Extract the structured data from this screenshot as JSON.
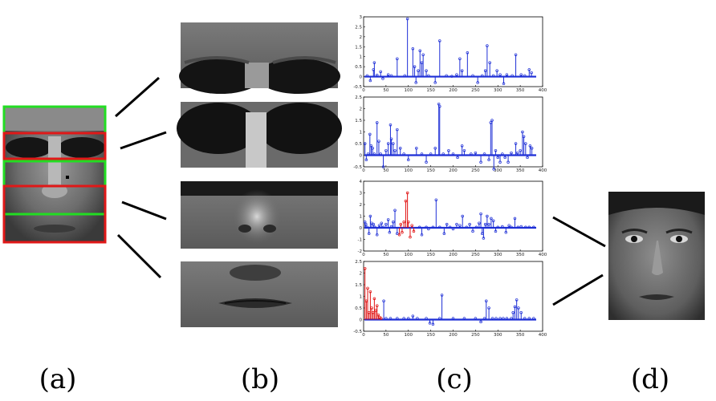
{
  "panel_labels": [
    "(a)",
    "(b)",
    "(c)",
    "(d)"
  ],
  "colors": {
    "stem_blue": "#1e2fd6",
    "stem_red": "#e01010",
    "box_green": "#22dd22",
    "box_red": "#e01818",
    "axis": "#000000"
  },
  "chart_data": [
    {
      "type": "stem",
      "xlim": [
        0,
        400
      ],
      "ylim": [
        -0.5,
        3
      ],
      "x_ticks": [
        0,
        50,
        100,
        150,
        200,
        250,
        300,
        350,
        400
      ],
      "y_ticks": [
        -0.5,
        0,
        0.5,
        1,
        1.5,
        2,
        2.5,
        3
      ],
      "x_tick_labels": [
        "0",
        "50",
        "100",
        "150",
        "200",
        "250",
        "300",
        "350",
        "400"
      ],
      "y_tick_labels": [
        "-0.5",
        "0",
        "0.5",
        "1",
        "1.5",
        "2",
        "2.5",
        "3"
      ],
      "highlight": [],
      "points": [
        [
          8,
          0.05
        ],
        [
          15,
          -0.2
        ],
        [
          22,
          0.35
        ],
        [
          24,
          0.7
        ],
        [
          30,
          0.08
        ],
        [
          38,
          0.25
        ],
        [
          43,
          -0.1
        ],
        [
          55,
          0.1
        ],
        [
          62,
          0.05
        ],
        [
          75,
          0.9
        ],
        [
          92,
          0.05
        ],
        [
          98,
          2.9
        ],
        [
          110,
          1.4
        ],
        [
          114,
          0.5
        ],
        [
          117,
          -0.3
        ],
        [
          122,
          0.3
        ],
        [
          126,
          1.3
        ],
        [
          130,
          0.7
        ],
        [
          133,
          1.1
        ],
        [
          140,
          0.3
        ],
        [
          145,
          0.05
        ],
        [
          160,
          -0.3
        ],
        [
          170,
          1.8
        ],
        [
          185,
          0.05
        ],
        [
          197,
          0.02
        ],
        [
          208,
          0.1
        ],
        [
          215,
          0.9
        ],
        [
          220,
          0.3
        ],
        [
          232,
          1.2
        ],
        [
          244,
          0.05
        ],
        [
          255,
          -0.3
        ],
        [
          265,
          0.05
        ],
        [
          272,
          0.3
        ],
        [
          276,
          1.55
        ],
        [
          282,
          0.7
        ],
        [
          290,
          0.05
        ],
        [
          298,
          0.3
        ],
        [
          305,
          0.1
        ],
        [
          313,
          -0.35
        ],
        [
          320,
          0.1
        ],
        [
          332,
          0.05
        ],
        [
          340,
          1.1
        ],
        [
          352,
          0.1
        ],
        [
          360,
          0.05
        ],
        [
          370,
          0.35
        ],
        [
          375,
          0.2
        ]
      ]
    },
    {
      "type": "stem",
      "xlim": [
        0,
        400
      ],
      "ylim": [
        -0.5,
        2.5
      ],
      "x_ticks": [
        0,
        50,
        100,
        150,
        200,
        250,
        300,
        350,
        400
      ],
      "y_ticks": [
        -0.5,
        0,
        0.5,
        1,
        1.5,
        2,
        2.5
      ],
      "x_tick_labels": [
        "0",
        "50",
        "100",
        "150",
        "200",
        "250",
        "300",
        "350",
        "400"
      ],
      "y_tick_labels": [
        "-0.5",
        "0",
        "0.5",
        "1",
        "1.5",
        "2",
        "2.5"
      ],
      "highlight": [],
      "points": [
        [
          3,
          0.5
        ],
        [
          6,
          -0.2
        ],
        [
          10,
          0.05
        ],
        [
          14,
          0.9
        ],
        [
          17,
          0.4
        ],
        [
          20,
          0.3
        ],
        [
          24,
          0.05
        ],
        [
          30,
          1.4
        ],
        [
          34,
          0.6
        ],
        [
          38,
          0.05
        ],
        [
          44,
          -0.5
        ],
        [
          50,
          0.2
        ],
        [
          55,
          0.5
        ],
        [
          60,
          1.3
        ],
        [
          62,
          0.7
        ],
        [
          66,
          0.5
        ],
        [
          70,
          0.2
        ],
        [
          75,
          1.1
        ],
        [
          82,
          0.3
        ],
        [
          90,
          0.05
        ],
        [
          100,
          -0.2
        ],
        [
          118,
          0.3
        ],
        [
          130,
          0.05
        ],
        [
          140,
          -0.3
        ],
        [
          150,
          0.05
        ],
        [
          160,
          0.3
        ],
        [
          168,
          2.2
        ],
        [
          170,
          2.1
        ],
        [
          178,
          0.05
        ],
        [
          190,
          0.2
        ],
        [
          200,
          0.05
        ],
        [
          210,
          -0.1
        ],
        [
          220,
          0.4
        ],
        [
          225,
          0.2
        ],
        [
          240,
          0.05
        ],
        [
          250,
          0.1
        ],
        [
          262,
          -0.3
        ],
        [
          270,
          0.05
        ],
        [
          280,
          -0.2
        ],
        [
          284,
          1.4
        ],
        [
          287,
          1.5
        ],
        [
          291,
          -0.6
        ],
        [
          295,
          0.2
        ],
        [
          300,
          -0.1
        ],
        [
          305,
          -0.3
        ],
        [
          310,
          0.05
        ],
        [
          316,
          -0.1
        ],
        [
          323,
          -0.3
        ],
        [
          330,
          0.1
        ],
        [
          340,
          0.5
        ],
        [
          344,
          0.1
        ],
        [
          350,
          0.2
        ],
        [
          355,
          1.0
        ],
        [
          358,
          0.8
        ],
        [
          362,
          0.5
        ],
        [
          366,
          -0.1
        ],
        [
          372,
          0.4
        ],
        [
          376,
          0.3
        ]
      ]
    },
    {
      "type": "stem",
      "xlim": [
        0,
        400
      ],
      "ylim": [
        -2,
        4
      ],
      "x_ticks": [
        0,
        50,
        100,
        150,
        200,
        250,
        300,
        350,
        400
      ],
      "y_ticks": [
        -2,
        -1,
        0,
        1,
        2,
        3,
        4
      ],
      "x_tick_labels": [
        "0",
        "50",
        "100",
        "150",
        "200",
        "250",
        "300",
        "350",
        "400"
      ],
      "y_tick_labels": [
        "-2",
        "-1",
        "0",
        "1",
        "2",
        "3",
        "4"
      ],
      "highlight": [
        80,
        115
      ],
      "points": [
        [
          3,
          0.5
        ],
        [
          5,
          0.3
        ],
        [
          8,
          0.05
        ],
        [
          12,
          -0.5
        ],
        [
          15,
          1.0
        ],
        [
          18,
          0.4
        ],
        [
          22,
          0.3
        ],
        [
          25,
          0.05
        ],
        [
          30,
          -0.6
        ],
        [
          35,
          0.2
        ],
        [
          40,
          0.4
        ],
        [
          44,
          0.05
        ],
        [
          50,
          0.3
        ],
        [
          55,
          0.7
        ],
        [
          58,
          -0.4
        ],
        [
          62,
          0.1
        ],
        [
          66,
          0.5
        ],
        [
          70,
          1.5
        ],
        [
          75,
          -0.5
        ],
        [
          80,
          -0.6
        ],
        [
          83,
          0.3
        ],
        [
          86,
          -0.4
        ],
        [
          90,
          0.5
        ],
        [
          94,
          2.3
        ],
        [
          98,
          3.0
        ],
        [
          100,
          0.5
        ],
        [
          104,
          -0.8
        ],
        [
          108,
          0.2
        ],
        [
          112,
          -0.3
        ],
        [
          125,
          0.05
        ],
        [
          130,
          -0.6
        ],
        [
          140,
          0.05
        ],
        [
          145,
          -0.1
        ],
        [
          155,
          0.05
        ],
        [
          162,
          2.4
        ],
        [
          170,
          0.05
        ],
        [
          180,
          -0.5
        ],
        [
          186,
          0.3
        ],
        [
          193,
          0.05
        ],
        [
          200,
          -0.1
        ],
        [
          208,
          0.3
        ],
        [
          215,
          0.2
        ],
        [
          221,
          1.0
        ],
        [
          230,
          0.05
        ],
        [
          237,
          0.3
        ],
        [
          244,
          -0.3
        ],
        [
          252,
          0.05
        ],
        [
          258,
          0.4
        ],
        [
          262,
          1.2
        ],
        [
          265,
          -0.5
        ],
        [
          268,
          -0.9
        ],
        [
          272,
          0.3
        ],
        [
          276,
          1.0
        ],
        [
          280,
          0.3
        ],
        [
          285,
          0.8
        ],
        [
          290,
          0.6
        ],
        [
          295,
          -0.3
        ],
        [
          300,
          0.05
        ],
        [
          310,
          0.1
        ],
        [
          318,
          -0.4
        ],
        [
          325,
          0.2
        ],
        [
          330,
          0.05
        ],
        [
          338,
          0.8
        ],
        [
          345,
          0.05
        ],
        [
          352,
          0.1
        ],
        [
          362,
          0.05
        ],
        [
          370,
          0.05
        ],
        [
          380,
          0.05
        ]
      ]
    },
    {
      "type": "stem",
      "xlim": [
        0,
        400
      ],
      "ylim": [
        -0.5,
        2.5
      ],
      "x_ticks": [
        0,
        50,
        100,
        150,
        200,
        250,
        300,
        350,
        400
      ],
      "y_ticks": [
        -0.5,
        0,
        0.5,
        1,
        1.5,
        2,
        2.5
      ],
      "x_tick_labels": [
        "0",
        "50",
        "100",
        "150",
        "200",
        "250",
        "300",
        "350",
        "400"
      ],
      "y_tick_labels": [
        "-0.5",
        "0",
        "0.5",
        "1",
        "1.5",
        "2",
        "2.5"
      ],
      "highlight": [
        0,
        40
      ],
      "points": [
        [
          3,
          2.2
        ],
        [
          6,
          0.8
        ],
        [
          9,
          1.35
        ],
        [
          12,
          0.3
        ],
        [
          15,
          1.2
        ],
        [
          18,
          0.5
        ],
        [
          21,
          0.3
        ],
        [
          24,
          0.9
        ],
        [
          27,
          0.4
        ],
        [
          30,
          0.6
        ],
        [
          33,
          0.2
        ],
        [
          36,
          0.1
        ],
        [
          39,
          0.05
        ],
        [
          45,
          0.8
        ],
        [
          50,
          0.05
        ],
        [
          60,
          0.05
        ],
        [
          75,
          0.05
        ],
        [
          90,
          0.05
        ],
        [
          100,
          0.05
        ],
        [
          110,
          0.15
        ],
        [
          120,
          0.05
        ],
        [
          140,
          0.05
        ],
        [
          148,
          -0.15
        ],
        [
          155,
          -0.2
        ],
        [
          170,
          0.05
        ],
        [
          175,
          1.05
        ],
        [
          200,
          0.05
        ],
        [
          225,
          0.05
        ],
        [
          250,
          0.05
        ],
        [
          262,
          -0.1
        ],
        [
          270,
          0.05
        ],
        [
          274,
          0.8
        ],
        [
          280,
          0.5
        ],
        [
          288,
          0.05
        ],
        [
          296,
          0.05
        ],
        [
          305,
          0.05
        ],
        [
          312,
          0.05
        ],
        [
          320,
          0.05
        ],
        [
          330,
          0.05
        ],
        [
          334,
          0.3
        ],
        [
          338,
          0.55
        ],
        [
          342,
          0.85
        ],
        [
          346,
          0.5
        ],
        [
          352,
          0.3
        ],
        [
          360,
          0.05
        ],
        [
          370,
          0.05
        ],
        [
          380,
          0.05
        ]
      ]
    }
  ]
}
